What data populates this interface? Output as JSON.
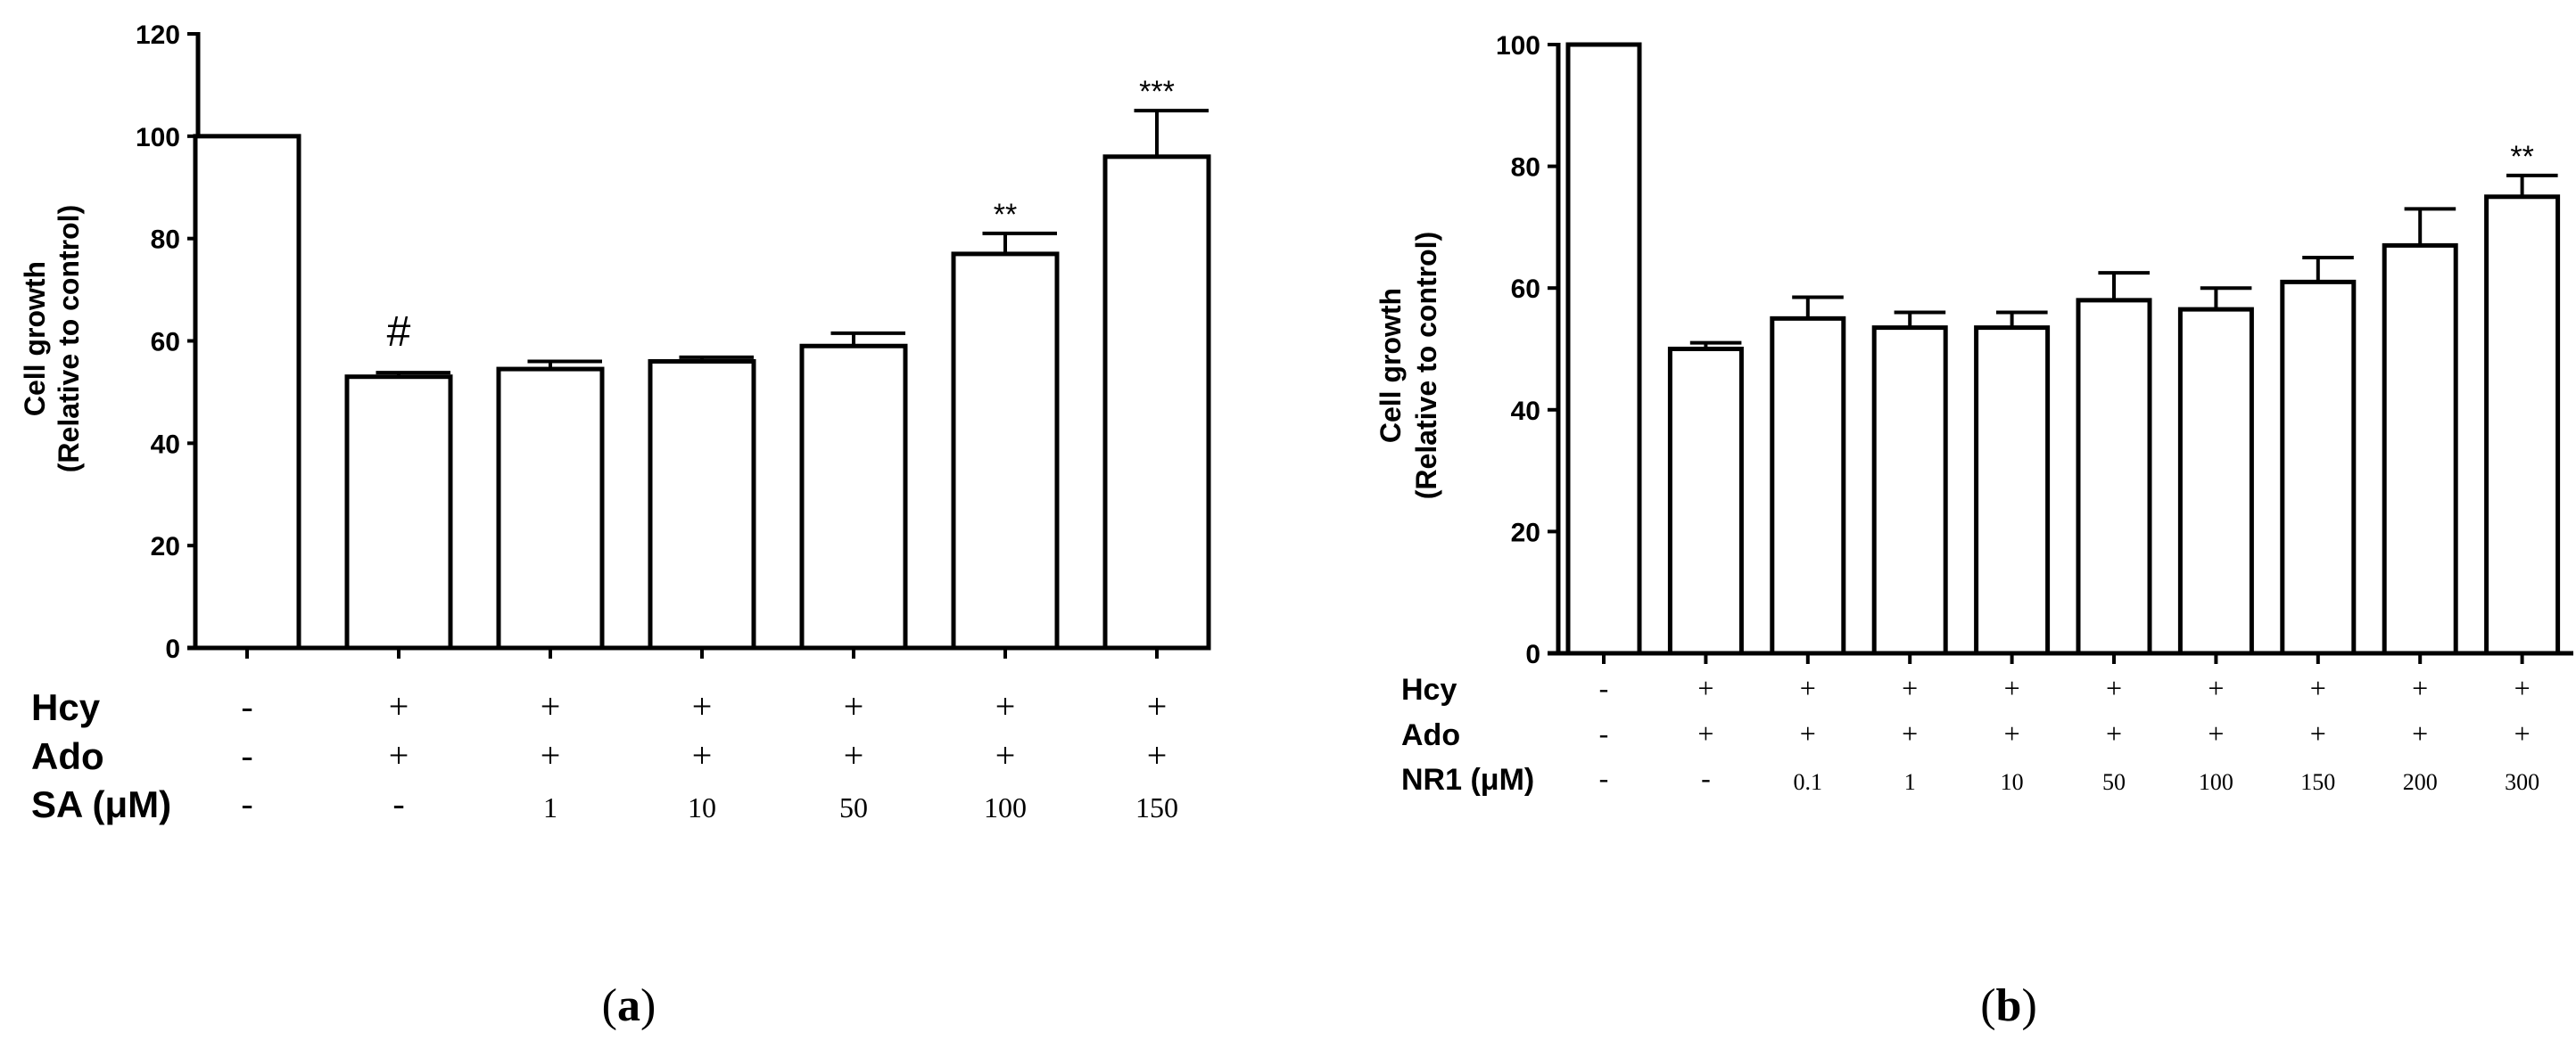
{
  "chart_data": [
    {
      "type": "bar",
      "panel": "a",
      "caption_open": "(",
      "caption_letter": "a",
      "caption_close": ")",
      "ylabel_line1": "Cell growth",
      "ylabel_line2": "(Relative to control)",
      "ylim": [
        0,
        120
      ],
      "yticks": [
        0,
        20,
        40,
        60,
        80,
        100,
        120
      ],
      "values": [
        100,
        53,
        54.5,
        56,
        59,
        77,
        96
      ],
      "errors": [
        0,
        0.8,
        1.5,
        0.8,
        2.5,
        4,
        9
      ],
      "annotations": [
        "",
        "#",
        "",
        "",
        "",
        "**",
        "***"
      ],
      "rows": [
        {
          "label": "Hcy",
          "values": [
            "-",
            "+",
            "+",
            "+",
            "+",
            "+",
            "+"
          ]
        },
        {
          "label": "Ado",
          "values": [
            "-",
            "+",
            "+",
            "+",
            "+",
            "+",
            "+"
          ]
        },
        {
          "label": "SA (μM)",
          "values": [
            "-",
            "-",
            "1",
            "10",
            "50",
            "100",
            "150"
          ]
        }
      ]
    },
    {
      "type": "bar",
      "panel": "b",
      "caption_open": "(",
      "caption_letter": "b",
      "caption_close": ")",
      "ylabel_line1": "Cell growth",
      "ylabel_line2": "(Relative to control)",
      "ylim": [
        0,
        100
      ],
      "yticks": [
        0,
        20,
        40,
        60,
        80,
        100
      ],
      "values": [
        100,
        50,
        55,
        53.5,
        53.5,
        58,
        56.5,
        61,
        67,
        75
      ],
      "errors": [
        0,
        1,
        3.5,
        2.5,
        2.5,
        4.5,
        3.5,
        4,
        6,
        3.5
      ],
      "annotations": [
        "",
        "",
        "",
        "",
        "",
        "",
        "",
        "",
        "",
        "**"
      ],
      "rows": [
        {
          "label": "Hcy",
          "values": [
            "-",
            "+",
            "+",
            "+",
            "+",
            "+",
            "+",
            "+",
            "+",
            "+"
          ]
        },
        {
          "label": "Ado",
          "values": [
            "-",
            "+",
            "+",
            "+",
            "+",
            "+",
            "+",
            "+",
            "+",
            "+"
          ]
        },
        {
          "label": "NR1 (μM)",
          "values": [
            "-",
            "-",
            "0.1",
            "1",
            "10",
            "50",
            "100",
            "150",
            "200",
            "300"
          ]
        }
      ]
    }
  ]
}
